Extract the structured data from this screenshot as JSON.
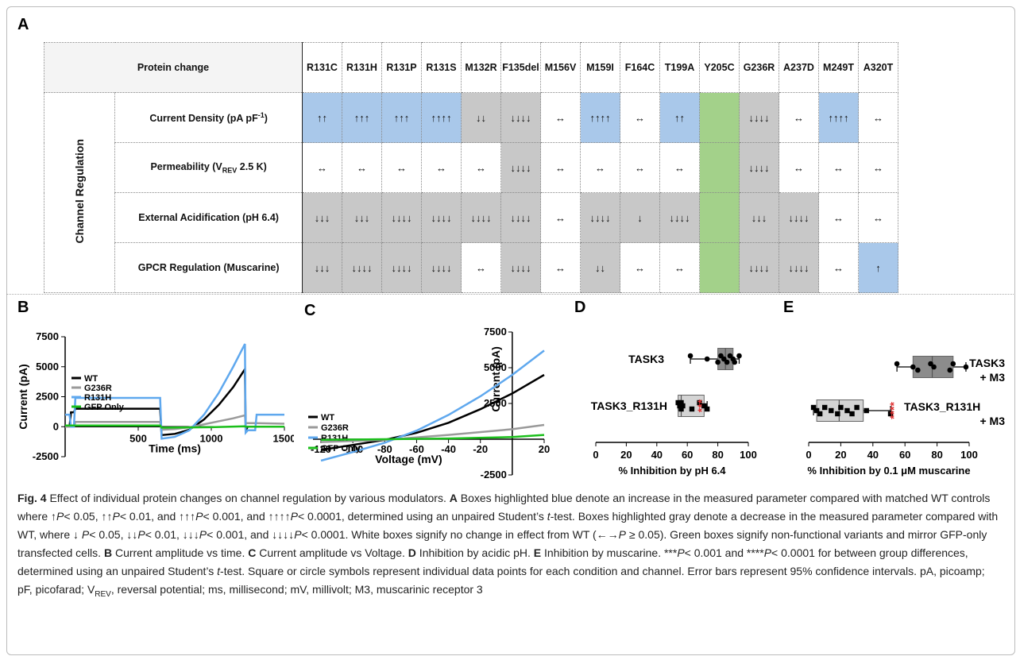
{
  "panel_a": {
    "letter": "A",
    "header_label": "Protein change",
    "columns": [
      "R131C",
      "R131H",
      "R131P",
      "R131S",
      "M132R",
      "F135del",
      "M156V",
      "M159I",
      "F164C",
      "T199A",
      "Y205C",
      "G236R",
      "A237D",
      "M249T",
      "A320T"
    ],
    "group_label": "Channel Regulation",
    "rows": [
      {
        "label_main": "Current Density (pA pF",
        "label_sup": "-1",
        "label_end": ")",
        "cells": [
          [
            "↑↑",
            "b"
          ],
          [
            "↑↑↑",
            "b"
          ],
          [
            "↑↑↑",
            "b"
          ],
          [
            "↑↑↑↑",
            "b"
          ],
          [
            "↓↓",
            "g"
          ],
          [
            "↓↓↓↓",
            "g"
          ],
          [
            "↔",
            "w"
          ],
          [
            "↑↑↑↑",
            "b"
          ],
          [
            "↔",
            "w"
          ],
          [
            "↑↑",
            "b"
          ],
          [
            "",
            "n"
          ],
          [
            "↓↓↓↓",
            "g"
          ],
          [
            "↔",
            "w"
          ],
          [
            "↑↑↑↑",
            "b"
          ],
          [
            "↔",
            "w"
          ]
        ]
      },
      {
        "label_main": "Permeability (V",
        "label_sub": "REV",
        "label_end": " 2.5 K)",
        "cells": [
          [
            "↔",
            "w"
          ],
          [
            "↔",
            "w"
          ],
          [
            "↔",
            "w"
          ],
          [
            "↔",
            "w"
          ],
          [
            "↔",
            "w"
          ],
          [
            "↓↓↓↓",
            "g"
          ],
          [
            "↔",
            "w"
          ],
          [
            "↔",
            "w"
          ],
          [
            "↔",
            "w"
          ],
          [
            "↔",
            "w"
          ],
          [
            "",
            "n"
          ],
          [
            "↓↓↓↓",
            "g"
          ],
          [
            "↔",
            "w"
          ],
          [
            "↔",
            "w"
          ],
          [
            "↔",
            "w"
          ]
        ]
      },
      {
        "label_main": "External Acidification (pH 6.4)",
        "cells": [
          [
            "↓↓↓",
            "g"
          ],
          [
            "↓↓↓",
            "g"
          ],
          [
            "↓↓↓↓",
            "g"
          ],
          [
            "↓↓↓↓",
            "g"
          ],
          [
            "↓↓↓↓",
            "g"
          ],
          [
            "↓↓↓↓",
            "g"
          ],
          [
            "↔",
            "w"
          ],
          [
            "↓↓↓↓",
            "g"
          ],
          [
            "↓",
            "g"
          ],
          [
            "↓↓↓↓",
            "g"
          ],
          [
            "",
            "n"
          ],
          [
            "↓↓↓",
            "g"
          ],
          [
            "↓↓↓↓",
            "g"
          ],
          [
            "↔",
            "w"
          ],
          [
            "↔",
            "w"
          ]
        ]
      },
      {
        "label_main": "GPCR Regulation (Muscarine)",
        "cells": [
          [
            "↓↓↓",
            "g"
          ],
          [
            "↓↓↓↓",
            "g"
          ],
          [
            "↓↓↓↓",
            "g"
          ],
          [
            "↓↓↓↓",
            "g"
          ],
          [
            "↔",
            "w"
          ],
          [
            "↓↓↓↓",
            "g"
          ],
          [
            "↔",
            "w"
          ],
          [
            "↓↓",
            "g"
          ],
          [
            "↔",
            "w"
          ],
          [
            "↔",
            "w"
          ],
          [
            "",
            "n"
          ],
          [
            "↓↓↓↓",
            "g"
          ],
          [
            "↓↓↓↓",
            "g"
          ],
          [
            "↔",
            "w"
          ],
          [
            "↑",
            "b"
          ]
        ]
      }
    ],
    "colors": {
      "blue": "#a9c8ea",
      "gray": "#c8c8c8",
      "white": "#ffffff",
      "green": "#a3d18a"
    }
  },
  "panel_b": {
    "letter": "B"
  },
  "panel_c": {
    "letter": "C"
  },
  "panel_d": {
    "letter": "D"
  },
  "panel_e": {
    "letter": "E"
  },
  "chart_data": [
    {
      "type": "line",
      "panel": "B",
      "xlabel": "Time (ms)",
      "ylabel": "Current (pA)",
      "xlim": [
        0,
        1500
      ],
      "ylim": [
        -2500,
        7500
      ],
      "xticks": [
        "500",
        "1000",
        "1500"
      ],
      "yticks": [
        "-2500",
        "0",
        "2500",
        "5000",
        "7500"
      ],
      "legend_position": "left",
      "series": [
        {
          "name": "WT",
          "color": "#000000",
          "x": [
            0,
            30,
            40,
            60,
            70,
            650,
            660,
            750,
            850,
            950,
            1050,
            1150,
            1230,
            1235,
            1250,
            1500
          ],
          "y": [
            0,
            0,
            1200,
            1200,
            1500,
            1500,
            -700,
            -600,
            -250,
            600,
            1800,
            3300,
            4800,
            -300,
            0,
            0
          ]
        },
        {
          "name": "G236R",
          "color": "#9a9a9a",
          "x": [
            0,
            60,
            70,
            650,
            660,
            750,
            850,
            950,
            1050,
            1150,
            1230,
            1235,
            1300,
            1500
          ],
          "y": [
            0,
            0,
            400,
            400,
            -250,
            -200,
            -50,
            200,
            450,
            700,
            950,
            300,
            300,
            250
          ]
        },
        {
          "name": "R131H",
          "color": "#5fa8ee",
          "x": [
            0,
            30,
            40,
            60,
            70,
            650,
            660,
            750,
            850,
            950,
            1050,
            1150,
            1230,
            1235,
            1250,
            1300,
            1310,
            1500
          ],
          "y": [
            1000,
            1000,
            0,
            0,
            2400,
            2400,
            -1000,
            -850,
            -300,
            1000,
            2800,
            5000,
            6900,
            -500,
            -300,
            -300,
            1000,
            1000
          ]
        },
        {
          "name": "GFP Only",
          "color": "#1bbf1b",
          "x": [
            0,
            650,
            660,
            1000,
            1230,
            1235,
            1500
          ],
          "y": [
            100,
            100,
            -80,
            -40,
            30,
            0,
            0
          ]
        }
      ]
    },
    {
      "type": "line",
      "panel": "C",
      "xlabel": "Voltage (mV)",
      "ylabel": "Current (pA)",
      "xlim": [
        -125,
        20
      ],
      "ylim": [
        -2500,
        7500
      ],
      "xticks": [
        "-120",
        "-100",
        "-80",
        "-60",
        "-40",
        "-20",
        "20"
      ],
      "yticks": [
        "-2500",
        "2500",
        "5000",
        "7500"
      ],
      "legend_position": "left",
      "series": [
        {
          "name": "WT",
          "color": "#000000",
          "x": [
            -120,
            -100,
            -80,
            -60,
            -40,
            -20,
            0,
            20
          ],
          "y": [
            -750,
            -400,
            -50,
            450,
            1150,
            2100,
            3200,
            4500
          ]
        },
        {
          "name": "G236R",
          "color": "#9a9a9a",
          "x": [
            -120,
            -80,
            -40,
            0,
            20
          ],
          "y": [
            -200,
            -50,
            300,
            700,
            1000
          ]
        },
        {
          "name": "R131H",
          "color": "#5fa8ee",
          "x": [
            -120,
            -100,
            -80,
            -60,
            -40,
            -20,
            0,
            20
          ],
          "y": [
            -1500,
            -900,
            -250,
            600,
            1700,
            3000,
            4500,
            6200
          ]
        },
        {
          "name": "GFP Only",
          "color": "#1bbf1b",
          "x": [
            -120,
            -80,
            -40,
            0,
            20
          ],
          "y": [
            -50,
            0,
            50,
            150,
            300
          ]
        }
      ]
    },
    {
      "type": "box",
      "panel": "D",
      "xlabel": "% Inhibition by pH 6.4",
      "xlim": [
        0,
        100
      ],
      "xticks": [
        "0",
        "20",
        "40",
        "60",
        "80",
        "100"
      ],
      "significance": "***",
      "series": [
        {
          "name": "TASK3",
          "name_line2": "",
          "color": "#8c8c8c",
          "marker": "circle",
          "whisker": [
            62,
            94
          ],
          "box": [
            80,
            90
          ],
          "median": 85,
          "points": [
            62,
            73,
            80,
            82,
            84,
            86,
            88,
            90,
            91,
            94
          ]
        },
        {
          "name": "TASK3_R131H",
          "name_line2": "",
          "color": "#d4d4d4",
          "marker": "square",
          "whisker": [
            54,
            73
          ],
          "box": [
            54,
            71
          ],
          "median": 56,
          "points": [
            54,
            55,
            56,
            56,
            57,
            63,
            68,
            71,
            73
          ]
        }
      ]
    },
    {
      "type": "box",
      "panel": "E",
      "xlabel": "% Inhibition by 0.1 μM muscarine",
      "xlim": [
        0,
        100
      ],
      "xticks": [
        "0",
        "20",
        "40",
        "60",
        "80",
        "100"
      ],
      "significance": "****",
      "series": [
        {
          "name": "TASK3",
          "name_line2": "+ M3",
          "color": "#8c8c8c",
          "marker": "circle",
          "whisker": [
            55,
            98
          ],
          "box": [
            65,
            90
          ],
          "median": 77,
          "points": [
            55,
            65,
            68,
            76,
            78,
            88,
            90,
            98
          ]
        },
        {
          "name": "TASK3_R131H",
          "name_line2": "+ M3",
          "color": "#d4d4d4",
          "marker": "square",
          "whisker": [
            3,
            51
          ],
          "box": [
            5,
            34
          ],
          "median": 19,
          "points": [
            3,
            5,
            7,
            10,
            14,
            18,
            20,
            24,
            27,
            30,
            36,
            51
          ]
        }
      ]
    }
  ],
  "caption": {
    "fig": "Fig. 4",
    "s1": "  Effect of individual protein changes on channel regulation by various modulators. ",
    "A": "A",
    "s2": " Boxes highlighted blue denote an increase in the measured parameter compared with matched WT controls where ↑",
    "P": "P",
    "s3": "< 0.05, ↑↑",
    "s4": "< 0.01, and ↑↑↑",
    "s5": "< 0.001, and ↑↑↑↑",
    "s6": "< 0.0001, determined using an unpaired Student’s ",
    "t": "t",
    "s7": "-test. Boxes highlighted gray denote a decrease in the measured parameter compared with WT, where ↓ ",
    "s8": "< 0.05, ↓↓",
    "s9": "< 0.01, ↓↓↓",
    "s10": "< 0.001, and ↓↓↓↓",
    "s11": "< 0.0001. White boxes signify no change in effect from WT (←→",
    "s12": " ≥ 0.05). Green boxes signify non-functional variants and mirror GFP-only transfected cells. ",
    "B": "B",
    "s13": " Current amplitude vs time. ",
    "C": "C",
    "s14": " Current amplitude vs Voltage. ",
    "D": "D",
    "s15": " Inhibition by acidic pH. ",
    "E": "E",
    "s16": " Inhibition by muscarine. ***",
    "s17": "< 0.001 and ****",
    "s18": "< 0.0001 for between group differences, determined using an unpaired Student’s ",
    "s19": "-test. Square or circle symbols represent individual data points for each condition and channel. Error bars represent 95% confidence intervals. pA, picoamp; pF, picofarad; V",
    "rev": "REV",
    "s20": ", reversal potential; ms, millisecond; mV, millivolt; M3, muscarinic receptor 3"
  }
}
